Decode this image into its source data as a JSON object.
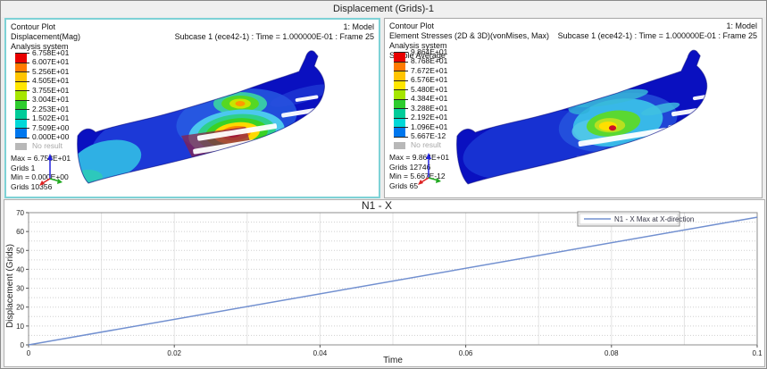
{
  "window": {
    "title": "Displacement (Grids)-1"
  },
  "colors": {
    "background": "#ededed",
    "band_colors": [
      "#e80000",
      "#ff7a00",
      "#ffc400",
      "#ffe600",
      "#a6e600",
      "#2ecc2e",
      "#00cc99",
      "#00d8d8",
      "#0077ee"
    ],
    "no_result_color": "#b8b8b8",
    "active_border": "#7ed2d6",
    "panel_border": "#a8a8a8",
    "line_color": "#7290d0"
  },
  "left_panel": {
    "info_lines": [
      "Contour Plot",
      "Displacement(Mag)",
      "Analysis system"
    ],
    "model_label": "1: Model",
    "subcase_label": "Subcase 1 (ece42-1) : Time = 1.000000E-01 : Frame 25",
    "legend_values": [
      "6.758E+01",
      "6.007E+01",
      "5.256E+01",
      "4.505E+01",
      "3.755E+01",
      "3.004E+01",
      "2.253E+01",
      "1.502E+01",
      "7.509E+00",
      "0.000E+00"
    ],
    "no_result_label": "No result",
    "stats": [
      "Max = 6.758E+01",
      "Grids 1",
      "Min = 0.000E+00",
      "Grids 10356"
    ]
  },
  "right_panel": {
    "info_lines": [
      "Contour Plot",
      "Element Stresses (2D & 3D)(vonMises, Max)",
      "Analysis system",
      "Simple Average"
    ],
    "model_label": "1: Model",
    "subcase_label": "Subcase 1 (ece42-1) : Time = 1.000000E-01 : Frame 25",
    "legend_values": [
      "9.864E+01",
      "8.768E+01",
      "7.672E+01",
      "6.576E+01",
      "5.480E+01",
      "4.384E+01",
      "3.288E+01",
      "2.192E+01",
      "1.096E+01",
      "5.667E-12"
    ],
    "no_result_label": "No result",
    "stats": [
      "Max = 9.864E+01",
      "Grids 12746",
      "Min = 5.667E-12",
      "Grids 65"
    ]
  },
  "chart_data": {
    "type": "line",
    "title": "N1 - X",
    "xlabel": "Time",
    "ylabel": "Displacement (Grids)",
    "xlim": [
      0,
      0.1
    ],
    "ylim": [
      0,
      70
    ],
    "xticks": [
      0,
      0.02,
      0.04,
      0.06,
      0.08,
      0.1
    ],
    "xtick_labels": [
      "0",
      "0.02",
      "0.04",
      "0.06",
      "0.08",
      "0.1"
    ],
    "yticks": [
      0,
      10,
      20,
      30,
      40,
      50,
      60,
      70
    ],
    "ytick_labels": [
      "0",
      "10",
      "20",
      "30",
      "40",
      "50",
      "60",
      "70"
    ],
    "minor_x_step": 0.01,
    "minor_y_step": 5,
    "grid": true,
    "legend_position": "top-right",
    "series": [
      {
        "name": "N1 - X Max at X-direction",
        "x": [
          0,
          0.1
        ],
        "y": [
          0,
          67.58
        ],
        "color": "#7290d0"
      }
    ]
  }
}
